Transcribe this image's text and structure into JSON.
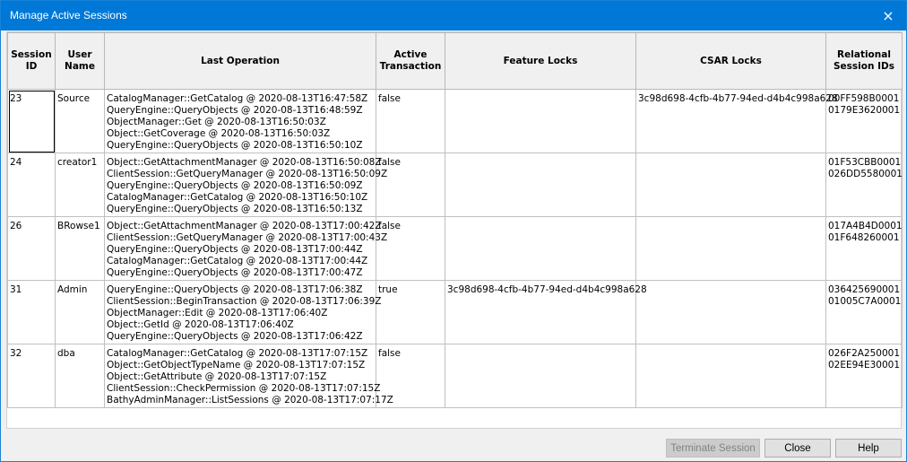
{
  "window": {
    "title": "Manage Active Sessions",
    "close_icon": "×"
  },
  "table": {
    "headers": {
      "session_id": "Session ID",
      "user_name": "User Name",
      "last_operation": "Last Operation",
      "active_transaction": "Active Transaction",
      "feature_locks": "Feature Locks",
      "csar_locks": "CSAR Locks",
      "relational_session_ids": "Relational Session IDs"
    },
    "rows": [
      {
        "session_id": "23",
        "user_name": "Source",
        "ops": [
          "CatalogManager::GetCatalog @ 2020-08-13T16:47:58Z",
          "QueryEngine::QueryObjects @ 2020-08-13T16:48:59Z",
          "ObjectManager::Get @ 2020-08-13T16:50:03Z",
          "Object::GetCoverage @ 2020-08-13T16:50:03Z",
          "QueryEngine::QueryObjects @ 2020-08-13T16:50:10Z"
        ],
        "active_transaction": "false",
        "feature_locks": "",
        "csar_locks": "3c98d698-4cfb-4b77-94ed-d4b4c998a628",
        "rel_ids": [
          "00FF598B0001",
          "0179E3620001"
        ]
      },
      {
        "session_id": "24",
        "user_name": "creator1",
        "ops": [
          "Object::GetAttachmentManager @ 2020-08-13T16:50:08Z",
          "ClientSession::GetQueryManager @ 2020-08-13T16:50:09Z",
          "QueryEngine::QueryObjects @ 2020-08-13T16:50:09Z",
          "CatalogManager::GetCatalog @ 2020-08-13T16:50:10Z",
          "QueryEngine::QueryObjects @ 2020-08-13T16:50:13Z"
        ],
        "active_transaction": "false",
        "feature_locks": "",
        "csar_locks": "",
        "rel_ids": [
          "01F53CBB0001",
          "026DD5580001"
        ]
      },
      {
        "session_id": "26",
        "user_name": "BRowse1",
        "ops": [
          "Object::GetAttachmentManager @ 2020-08-13T17:00:42Z",
          "ClientSession::GetQueryManager @ 2020-08-13T17:00:43Z",
          "QueryEngine::QueryObjects @ 2020-08-13T17:00:44Z",
          "CatalogManager::GetCatalog @ 2020-08-13T17:00:44Z",
          "QueryEngine::QueryObjects @ 2020-08-13T17:00:47Z"
        ],
        "active_transaction": "false",
        "feature_locks": "",
        "csar_locks": "",
        "rel_ids": [
          "017A4B4D0001",
          "01F648260001"
        ]
      },
      {
        "session_id": "31",
        "user_name": "Admin",
        "ops": [
          "QueryEngine::QueryObjects @ 2020-08-13T17:06:38Z",
          "ClientSession::BeginTransaction @ 2020-08-13T17:06:39Z",
          "ObjectManager::Edit @ 2020-08-13T17:06:40Z",
          "Object::GetId @ 2020-08-13T17:06:40Z",
          "QueryEngine::QueryObjects @ 2020-08-13T17:06:42Z"
        ],
        "active_transaction": "true",
        "feature_locks": "3c98d698-4cfb-4b77-94ed-d4b4c998a628",
        "csar_locks": "",
        "rel_ids": [
          "036425690001",
          "01005C7A0001"
        ]
      },
      {
        "session_id": "32",
        "user_name": "dba",
        "ops": [
          "CatalogManager::GetCatalog @ 2020-08-13T17:07:15Z",
          "Object::GetObjectTypeName @ 2020-08-13T17:07:15Z",
          "Object::GetAttribute @ 2020-08-13T17:07:15Z",
          "ClientSession::CheckPermission @ 2020-08-13T17:07:15Z",
          "BathyAdminManager::ListSessions @ 2020-08-13T17:07:17Z"
        ],
        "active_transaction": "false",
        "feature_locks": "",
        "csar_locks": "",
        "rel_ids": [
          "026F2A250001",
          "02EE94E30001"
        ]
      }
    ]
  },
  "buttons": {
    "terminate": "Terminate Session",
    "close": "Close",
    "help": "Help"
  },
  "colors": {
    "titlebar": "#0078d7"
  }
}
